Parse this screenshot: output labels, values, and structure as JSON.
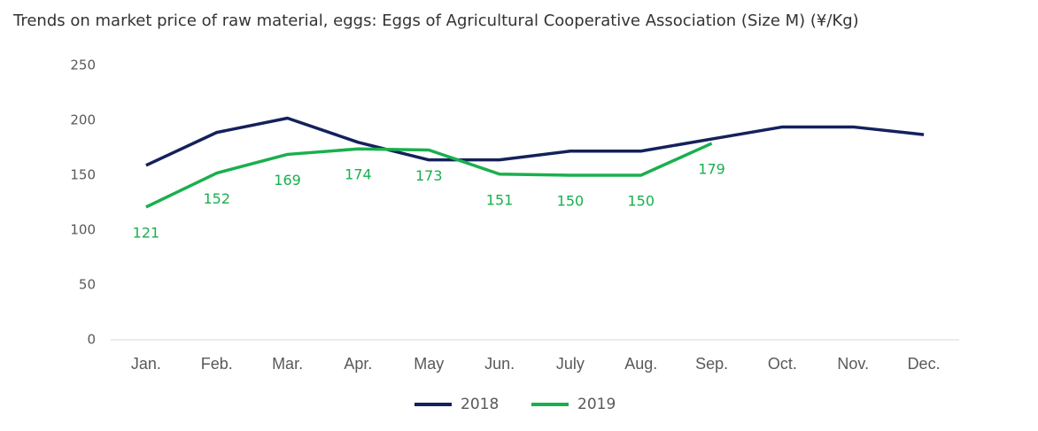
{
  "chart_data": {
    "type": "line",
    "title": "Trends on market price of raw material, eggs: Eggs of Agricultural Cooperative Association (Size M) (¥/Kg)",
    "categories": [
      "Jan.",
      "Feb.",
      "Mar.",
      "Apr.",
      "May",
      "Jun.",
      "July",
      "Aug.",
      "Sep.",
      "Oct.",
      "Nov.",
      "Dec."
    ],
    "series": [
      {
        "name": "2018",
        "color": "#14215c",
        "values": [
          159,
          189,
          202,
          180,
          164,
          164,
          172,
          172,
          183,
          194,
          194,
          187
        ]
      },
      {
        "name": "2019",
        "color": "#1aaf4e",
        "values": [
          121,
          152,
          169,
          174,
          173,
          151,
          150,
          150,
          179,
          null,
          null,
          null
        ],
        "data_labels": true
      }
    ],
    "ylim": [
      0,
      250
    ],
    "yticks": [
      0,
      50,
      100,
      150,
      200,
      250
    ],
    "grid": false,
    "legend": "bottom"
  }
}
